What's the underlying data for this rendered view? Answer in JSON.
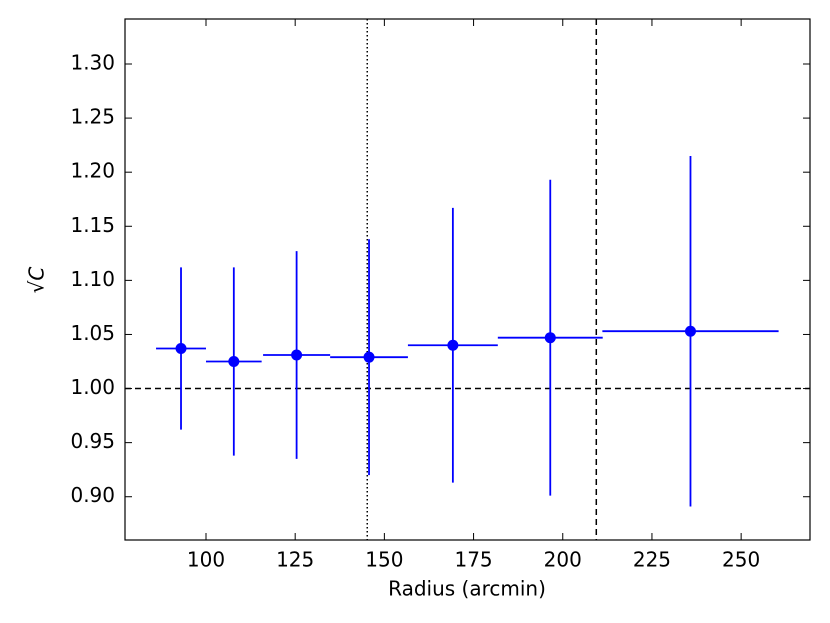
{
  "chart_data": {
    "type": "errorbar",
    "xlabel": "Radius (arcmin)",
    "ylabel": "√C",
    "series": [
      {
        "color": "#0000ff",
        "x": [
          93.0,
          107.8,
          125.4,
          145.7,
          169.2,
          196.5,
          235.8
        ],
        "xerr": [
          7.0,
          7.8,
          9.4,
          10.9,
          12.6,
          14.7,
          24.7
        ],
        "y": [
          1.037,
          1.025,
          1.031,
          1.029,
          1.04,
          1.047,
          1.053
        ],
        "yerr": [
          0.075,
          0.087,
          0.096,
          0.109,
          0.127,
          0.146,
          0.162
        ]
      }
    ],
    "hlines": [
      {
        "y": 1.0,
        "style": "dashed"
      }
    ],
    "vlines": [
      {
        "x": 145.2,
        "style": "dotted"
      },
      {
        "x": 209.4,
        "style": "dashed"
      }
    ],
    "xlim": [
      77.3,
      269.3
    ],
    "ylim": [
      0.86,
      1.3416
    ],
    "xticks": [
      100,
      125,
      150,
      175,
      200,
      225,
      250
    ],
    "yticks": [
      {
        "value": 0.9,
        "label": "0.90"
      },
      {
        "value": 0.95,
        "label": "0.95"
      },
      {
        "value": 1.0,
        "label": "1.00"
      },
      {
        "value": 1.05,
        "label": "1.05"
      },
      {
        "value": 1.1,
        "label": "1.10"
      },
      {
        "value": 1.15,
        "label": "1.15"
      },
      {
        "value": 1.2,
        "label": "1.20"
      },
      {
        "value": 1.25,
        "label": "1.25"
      },
      {
        "value": 1.3,
        "label": "1.30"
      }
    ],
    "grid": false
  }
}
